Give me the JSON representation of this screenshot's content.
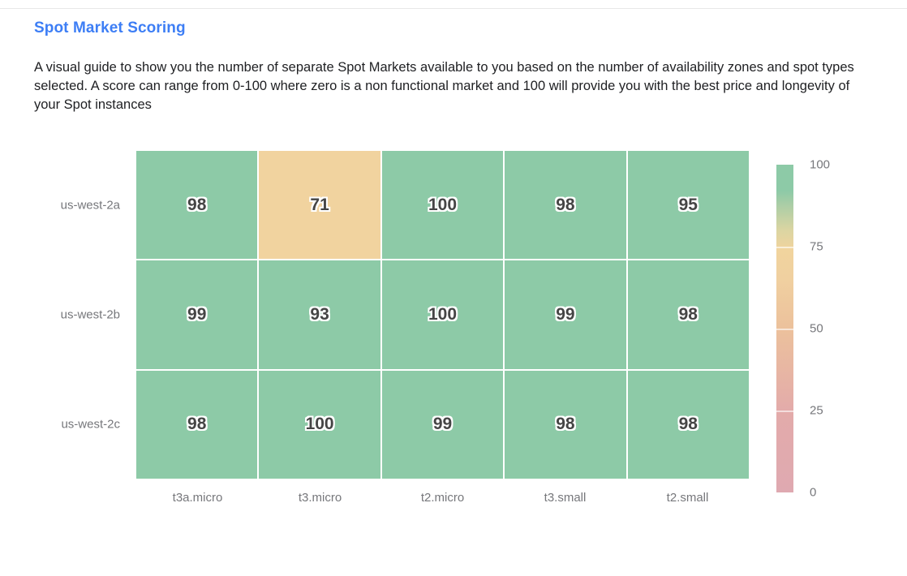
{
  "page": {
    "title": "Spot Market Scoring",
    "description": "A visual guide to show you the number of separate Spot Markets available to you based on the number of availability zones and spot types selected. A score can range from 0-100 where zero is a non functional market and 100 will provide you with the best price and longevity of your Spot instances"
  },
  "colors": {
    "title": "#3d7ef5",
    "axis_label": "#76777b",
    "cell_value_text": "#454545",
    "cell_green": "#8dcaa7",
    "cell_tan": "#f1d39f",
    "divider": "#e8e8e8",
    "page_background": "#ffffff"
  },
  "chart_data": {
    "type": "heatmap",
    "title": "Spot Market Scoring",
    "x_categories": [
      "t3a.micro",
      "t3.micro",
      "t2.micro",
      "t3.small",
      "t2.small"
    ],
    "y_categories": [
      "us-west-2a",
      "us-west-2b",
      "us-west-2c"
    ],
    "values": [
      [
        98,
        71,
        100,
        98,
        95
      ],
      [
        99,
        93,
        100,
        99,
        98
      ],
      [
        98,
        100,
        99,
        98,
        98
      ]
    ],
    "value_range": [
      0,
      100
    ],
    "grid": "off",
    "legend_position": "right",
    "colorbar": {
      "min": 0,
      "max": 100,
      "ticks": [
        100,
        75,
        50,
        25,
        0
      ],
      "separator_ticks": [
        75,
        50,
        25
      ],
      "stops": [
        {
          "value": 0,
          "color": "#dfa9b1"
        },
        {
          "value": 25,
          "color": "#e3abaa"
        },
        {
          "value": 50,
          "color": "#ecc19c"
        },
        {
          "value": 65,
          "color": "#f0d0a0"
        },
        {
          "value": 74,
          "color": "#f1d49e"
        },
        {
          "value": 80,
          "color": "#dbd5a2"
        },
        {
          "value": 88,
          "color": "#a9cda6"
        },
        {
          "value": 92,
          "color": "#8dcaa7"
        },
        {
          "value": 100,
          "color": "#8dcaa7"
        }
      ]
    }
  }
}
